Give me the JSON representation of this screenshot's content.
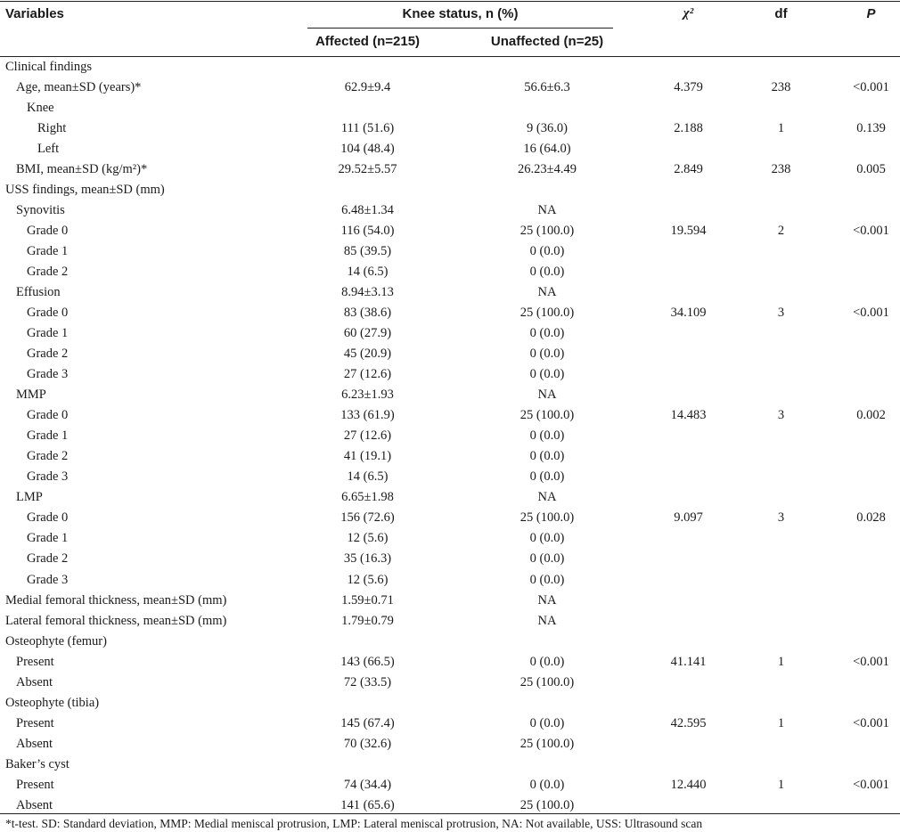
{
  "header": {
    "variables": "Variables",
    "knee_status": "Knee status, n (%)",
    "affected": "Affected (n=215)",
    "unaffected": "Unaffected (n=25)",
    "chi": "χ²",
    "df": "df",
    "p": "P"
  },
  "rows": [
    {
      "label": "Clinical findings",
      "indent": 0,
      "aff": "",
      "un": "",
      "chi": "",
      "df": "",
      "p": ""
    },
    {
      "label": "Age, mean±SD (years)*",
      "indent": 1,
      "aff": "62.9±9.4",
      "un": "56.6±6.3",
      "chi": "4.379",
      "df": "238",
      "p": "<0.001"
    },
    {
      "label": "Knee",
      "indent": 2,
      "aff": "",
      "un": "",
      "chi": "",
      "df": "",
      "p": ""
    },
    {
      "label": "Right",
      "indent": 3,
      "aff": "111 (51.6)",
      "un": "9 (36.0)",
      "chi": "2.188",
      "df": "1",
      "p": "0.139"
    },
    {
      "label": "Left",
      "indent": 3,
      "aff": "104 (48.4)",
      "un": "16 (64.0)",
      "chi": "",
      "df": "",
      "p": ""
    },
    {
      "label": "BMI, mean±SD (kg/m²)*",
      "indent": 1,
      "aff": "29.52±5.57",
      "un": "26.23±4.49",
      "chi": "2.849",
      "df": "238",
      "p": "0.005"
    },
    {
      "label": "USS findings, mean±SD (mm)",
      "indent": 0,
      "aff": "",
      "un": "",
      "chi": "",
      "df": "",
      "p": ""
    },
    {
      "label": "Synovitis",
      "indent": 1,
      "aff": "6.48±1.34",
      "un": "NA",
      "chi": "",
      "df": "",
      "p": ""
    },
    {
      "label": "Grade 0",
      "indent": 2,
      "aff": "116 (54.0)",
      "un": "25 (100.0)",
      "chi": "19.594",
      "df": "2",
      "p": "<0.001"
    },
    {
      "label": "Grade 1",
      "indent": 2,
      "aff": "85 (39.5)",
      "un": "0 (0.0)",
      "chi": "",
      "df": "",
      "p": ""
    },
    {
      "label": "Grade 2",
      "indent": 2,
      "aff": "14 (6.5)",
      "un": "0 (0.0)",
      "chi": "",
      "df": "",
      "p": ""
    },
    {
      "label": "Effusion",
      "indent": 1,
      "aff": "8.94±3.13",
      "un": "NA",
      "chi": "",
      "df": "",
      "p": ""
    },
    {
      "label": "Grade 0",
      "indent": 2,
      "aff": "83 (38.6)",
      "un": "25 (100.0)",
      "chi": "34.109",
      "df": "3",
      "p": "<0.001"
    },
    {
      "label": "Grade 1",
      "indent": 2,
      "aff": "60 (27.9)",
      "un": "0 (0.0)",
      "chi": "",
      "df": "",
      "p": ""
    },
    {
      "label": "Grade 2",
      "indent": 2,
      "aff": "45 (20.9)",
      "un": "0 (0.0)",
      "chi": "",
      "df": "",
      "p": ""
    },
    {
      "label": "Grade 3",
      "indent": 2,
      "aff": "27 (12.6)",
      "un": "0 (0.0)",
      "chi": "",
      "df": "",
      "p": ""
    },
    {
      "label": "MMP",
      "indent": 1,
      "aff": "6.23±1.93",
      "un": "NA",
      "chi": "",
      "df": "",
      "p": ""
    },
    {
      "label": "Grade 0",
      "indent": 2,
      "aff": "133 (61.9)",
      "un": "25 (100.0)",
      "chi": "14.483",
      "df": "3",
      "p": "0.002"
    },
    {
      "label": "Grade 1",
      "indent": 2,
      "aff": "27 (12.6)",
      "un": "0 (0.0)",
      "chi": "",
      "df": "",
      "p": ""
    },
    {
      "label": "Grade 2",
      "indent": 2,
      "aff": "41 (19.1)",
      "un": "0 (0.0)",
      "chi": "",
      "df": "",
      "p": ""
    },
    {
      "label": "Grade 3",
      "indent": 2,
      "aff": "14 (6.5)",
      "un": "0 (0.0)",
      "chi": "",
      "df": "",
      "p": ""
    },
    {
      "label": "LMP",
      "indent": 1,
      "aff": "6.65±1.98",
      "un": "NA",
      "chi": "",
      "df": "",
      "p": ""
    },
    {
      "label": "Grade 0",
      "indent": 2,
      "aff": "156 (72.6)",
      "un": "25 (100.0)",
      "chi": "9.097",
      "df": "3",
      "p": "0.028"
    },
    {
      "label": "Grade 1",
      "indent": 2,
      "aff": "12 (5.6)",
      "un": "0 (0.0)",
      "chi": "",
      "df": "",
      "p": ""
    },
    {
      "label": "Grade 2",
      "indent": 2,
      "aff": "35 (16.3)",
      "un": "0 (0.0)",
      "chi": "",
      "df": "",
      "p": ""
    },
    {
      "label": "Grade 3",
      "indent": 2,
      "aff": "12 (5.6)",
      "un": "0 (0.0)",
      "chi": "",
      "df": "",
      "p": ""
    },
    {
      "label": "Medial femoral thickness, mean±SD (mm)",
      "indent": 0,
      "aff": "1.59±0.71",
      "un": "NA",
      "chi": "",
      "df": "",
      "p": ""
    },
    {
      "label": "Lateral femoral thickness, mean±SD (mm)",
      "indent": 0,
      "aff": "1.79±0.79",
      "un": "NA",
      "chi": "",
      "df": "",
      "p": ""
    },
    {
      "label": "Osteophyte (femur)",
      "indent": 0,
      "aff": "",
      "un": "",
      "chi": "",
      "df": "",
      "p": ""
    },
    {
      "label": "Present",
      "indent": 1,
      "aff": "143 (66.5)",
      "un": "0 (0.0)",
      "chi": "41.141",
      "df": "1",
      "p": "<0.001"
    },
    {
      "label": "Absent",
      "indent": 1,
      "aff": "72 (33.5)",
      "un": "25 (100.0)",
      "chi": "",
      "df": "",
      "p": ""
    },
    {
      "label": "Osteophyte (tibia)",
      "indent": 0,
      "aff": "",
      "un": "",
      "chi": "",
      "df": "",
      "p": ""
    },
    {
      "label": "Present",
      "indent": 1,
      "aff": "145 (67.4)",
      "un": "0 (0.0)",
      "chi": "42.595",
      "df": "1",
      "p": "<0.001"
    },
    {
      "label": "Absent",
      "indent": 1,
      "aff": "70 (32.6)",
      "un": "25 (100.0)",
      "chi": "",
      "df": "",
      "p": ""
    },
    {
      "label": "Baker’s cyst",
      "indent": 0,
      "aff": "",
      "un": "",
      "chi": "",
      "df": "",
      "p": ""
    },
    {
      "label": "Present",
      "indent": 1,
      "aff": "74 (34.4)",
      "un": "0 (0.0)",
      "chi": "12.440",
      "df": "1",
      "p": "<0.001"
    },
    {
      "label": "Absent",
      "indent": 1,
      "aff": "141 (65.6)",
      "un": "25 (100.0)",
      "chi": "",
      "df": "",
      "p": ""
    }
  ],
  "footnote": "*t-test. SD: Standard deviation, MMP: Medial meniscal protrusion, LMP: Lateral meniscal protrusion, NA: Not available, USS: Ultrasound scan"
}
